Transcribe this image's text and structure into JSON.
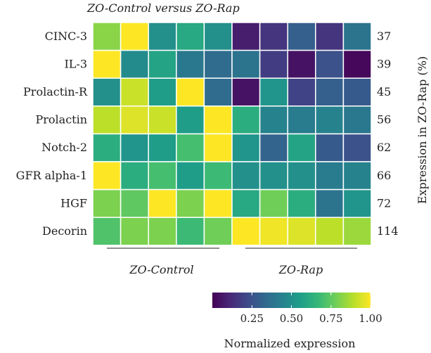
{
  "chart_data": {
    "type": "heatmap",
    "title": "ZO-Control versus ZO-Rap",
    "rows": [
      "CINC-3",
      "IL-3",
      "Prolactin-R",
      "Prolactin",
      "Notch-2",
      "GFR alpha-1",
      "HGF",
      "Decorin"
    ],
    "groups": [
      "ZO-Control",
      "ZO-Rap"
    ],
    "columns_per_group": 5,
    "values": [
      [
        0.82,
        1.0,
        0.5,
        0.6,
        0.5,
        0.08,
        0.15,
        0.3,
        0.15,
        0.38
      ],
      [
        1.0,
        0.48,
        0.58,
        0.4,
        0.35,
        0.38,
        0.18,
        0.05,
        0.25,
        0.02
      ],
      [
        0.5,
        0.92,
        0.55,
        1.0,
        0.35,
        0.05,
        0.52,
        0.2,
        0.3,
        0.28
      ],
      [
        0.9,
        0.95,
        0.92,
        0.55,
        1.0,
        0.62,
        0.45,
        0.42,
        0.45,
        0.4
      ],
      [
        0.62,
        0.52,
        0.55,
        0.7,
        1.0,
        0.52,
        0.32,
        0.58,
        0.28,
        0.25
      ],
      [
        1.0,
        0.62,
        0.7,
        0.55,
        0.68,
        0.5,
        0.5,
        0.5,
        0.42,
        0.45
      ],
      [
        0.8,
        0.75,
        1.0,
        0.8,
        1.0,
        0.6,
        0.78,
        0.62,
        0.38,
        0.52
      ],
      [
        0.72,
        0.8,
        0.8,
        0.68,
        0.78,
        1.0,
        0.98,
        0.95,
        0.9,
        0.85
      ]
    ],
    "expression_labels": [
      "37",
      "39",
      "45",
      "56",
      "62",
      "66",
      "72",
      "114"
    ],
    "right_axis_label": "Expression in ZO-Rap (%)",
    "colorbar": {
      "title": "Normalized expression",
      "range": [
        0,
        1
      ],
      "ticks": [
        0.25,
        0.5,
        0.75,
        1.0
      ],
      "tick_labels": [
        "0.25",
        "0.50",
        "0.75",
        "1.00"
      ],
      "palette": [
        "#440154",
        "#482878",
        "#3e4a89",
        "#31688e",
        "#26828e",
        "#1f9e89",
        "#35b779",
        "#6ece58",
        "#b5de2b",
        "#fde725"
      ]
    }
  }
}
